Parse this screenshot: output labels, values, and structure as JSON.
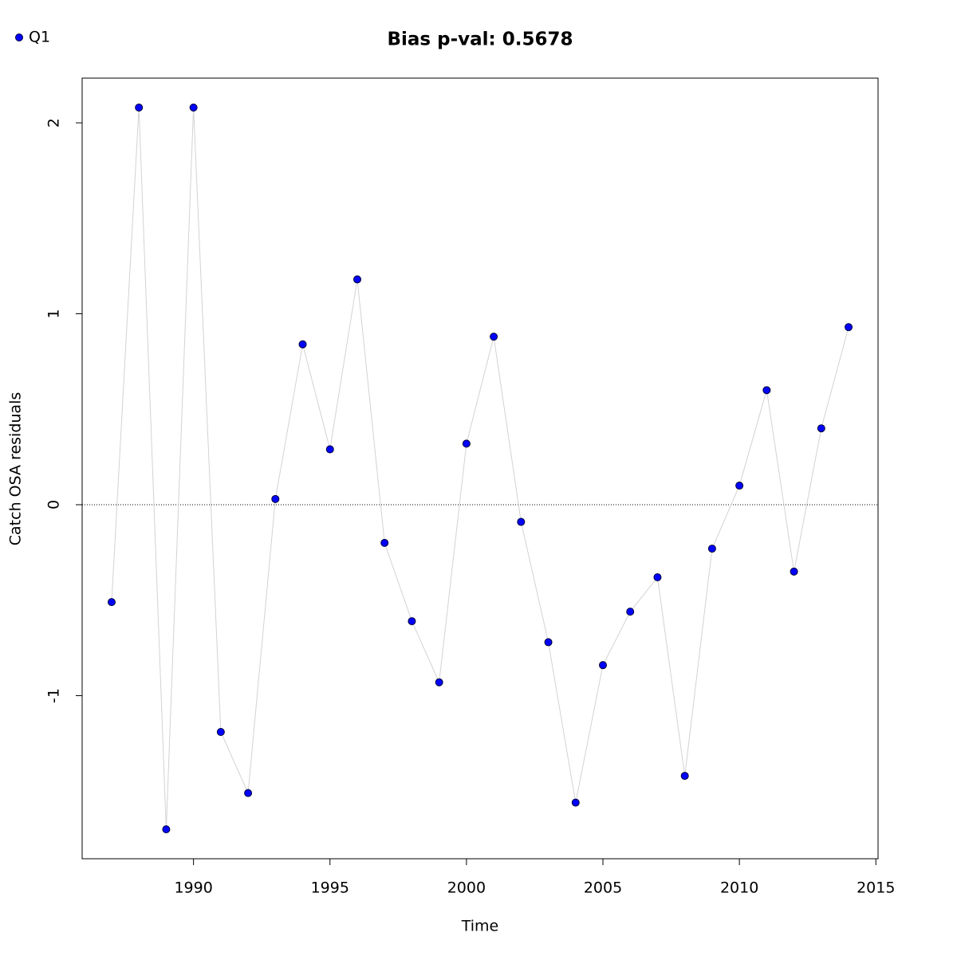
{
  "chart_data": {
    "type": "scatter",
    "title": "Bias p-val: 0.5678",
    "title_color": "#228b22",
    "xlabel": "Time",
    "ylabel": "Catch OSA residuals",
    "x": [
      1987,
      1988,
      1989,
      1990,
      1991,
      1992,
      1993,
      1994,
      1995,
      1996,
      1997,
      1998,
      1999,
      2000,
      2001,
      2002,
      2003,
      2004,
      2005,
      2006,
      2007,
      2008,
      2009,
      2010,
      2011,
      2012,
      2013,
      2014
    ],
    "series": [
      {
        "name": "Q1",
        "color": "#0000ff",
        "line_color": "#d3d3d3",
        "values": [
          -0.51,
          2.08,
          -1.7,
          2.08,
          -1.19,
          -1.51,
          0.03,
          0.84,
          0.29,
          1.18,
          -0.2,
          -0.61,
          -0.93,
          0.32,
          0.88,
          -0.09,
          -0.72,
          -1.56,
          -0.84,
          -0.56,
          -0.38,
          -1.42,
          -0.23,
          0.1,
          0.6,
          -0.35,
          0.4,
          0.93
        ]
      }
    ],
    "xlim": [
      1985.92,
      2015.08
    ],
    "xticks": [
      1990,
      1995,
      2000,
      2005,
      2010,
      2015
    ],
    "ylim": [
      -1.854,
      2.234
    ],
    "yticks": [
      -1,
      0,
      1,
      2
    ],
    "hline": 0,
    "legend": "top-left"
  }
}
